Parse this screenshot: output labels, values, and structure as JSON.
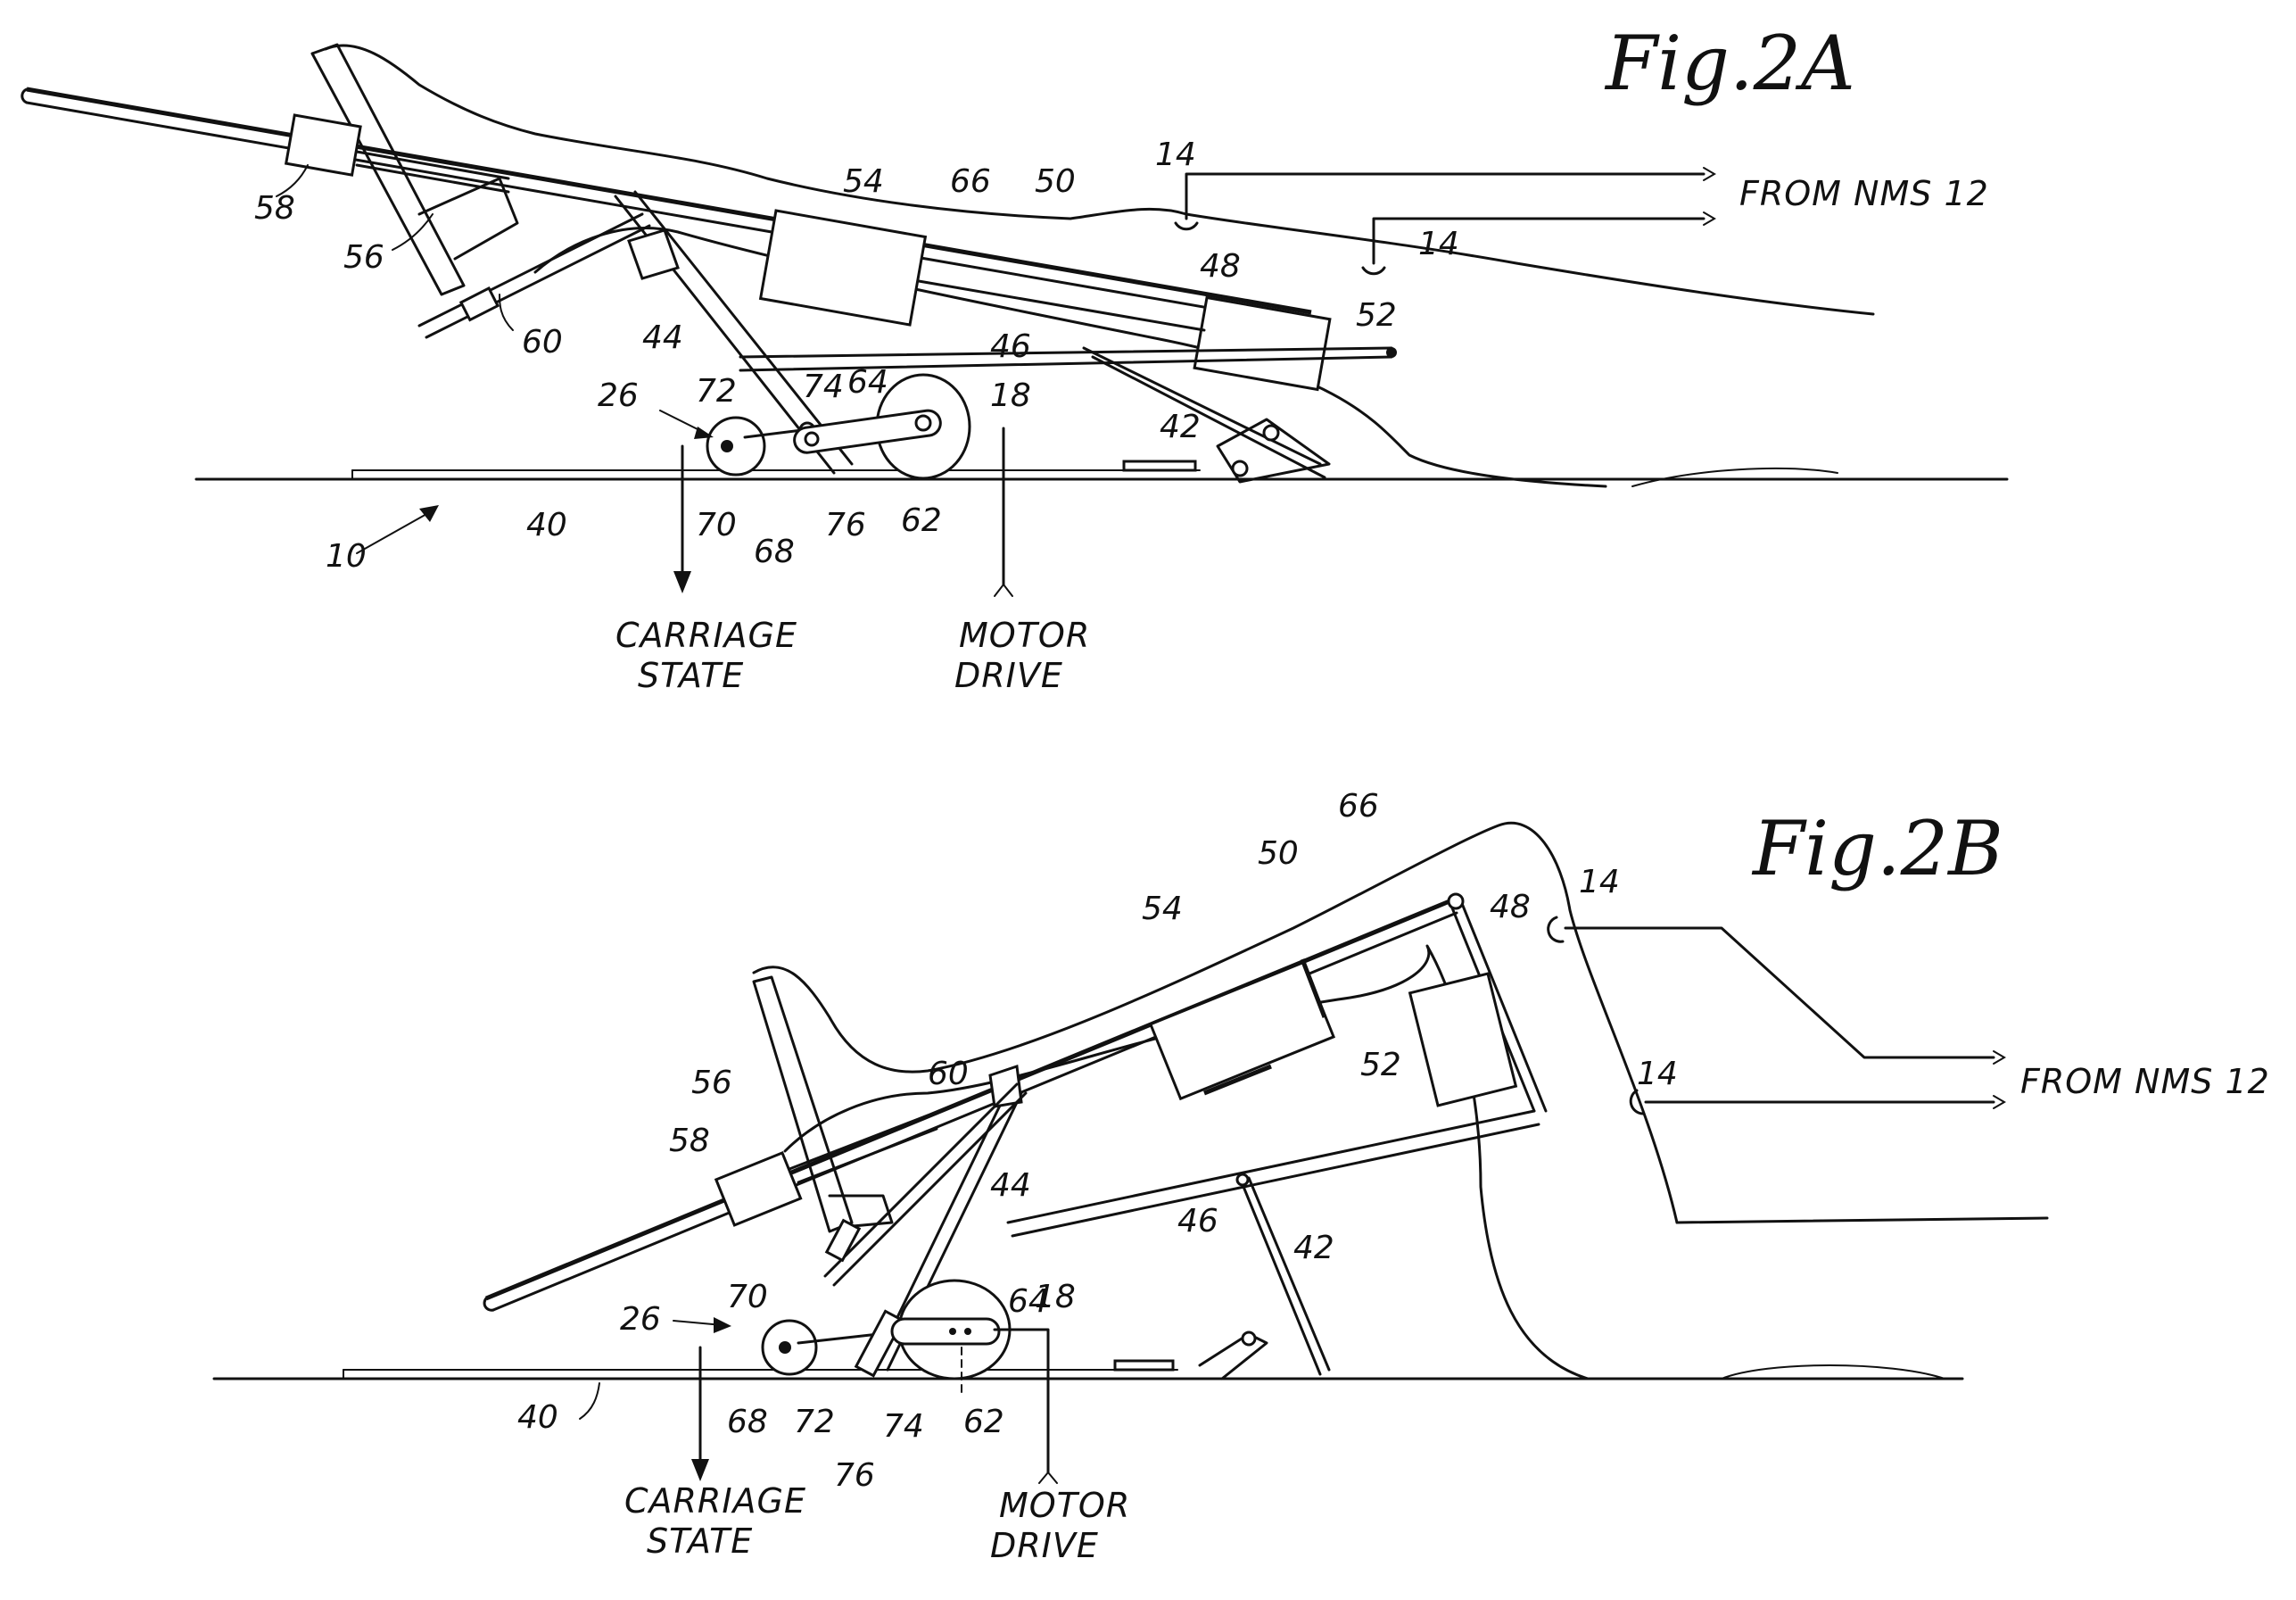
{
  "figures": [
    {
      "title": "Fig.2A",
      "labels": {
        "r10": "10",
        "r14a": "14",
        "r14b": "14",
        "r18": "18",
        "r26": "26",
        "r40": "40",
        "r42": "42",
        "r44": "44",
        "r46": "46",
        "r48": "48",
        "r50": "50",
        "r52": "52",
        "r54": "54",
        "r56": "56",
        "r58": "58",
        "r60": "60",
        "r62": "62",
        "r64": "64",
        "r66": "66",
        "r68": "68",
        "r70": "70",
        "r72": "72",
        "r74": "74",
        "r76": "76"
      },
      "signal_source": "FROM NMS 12",
      "output": [
        "CARRIAGE",
        "STATE"
      ],
      "drive": [
        "MOTOR",
        "DRIVE"
      ]
    },
    {
      "title": "Fig.2B",
      "labels": {
        "r14a": "14",
        "r14b": "14",
        "r18": "18",
        "r26": "26",
        "r40": "40",
        "r42": "42",
        "r44": "44",
        "r46": "46",
        "r48": "48",
        "r50": "50",
        "r52": "52",
        "r54": "54",
        "r56": "56",
        "r58": "58",
        "r60": "60",
        "r62": "62",
        "r64": "64",
        "r66": "66",
        "r68": "68",
        "r70": "70",
        "r72": "72",
        "r74": "74",
        "r76": "76"
      },
      "signal_source": "FROM NMS 12",
      "output": [
        "CARRIAGE",
        "STATE"
      ],
      "drive": [
        "MOTOR",
        "DRIVE"
      ]
    }
  ]
}
